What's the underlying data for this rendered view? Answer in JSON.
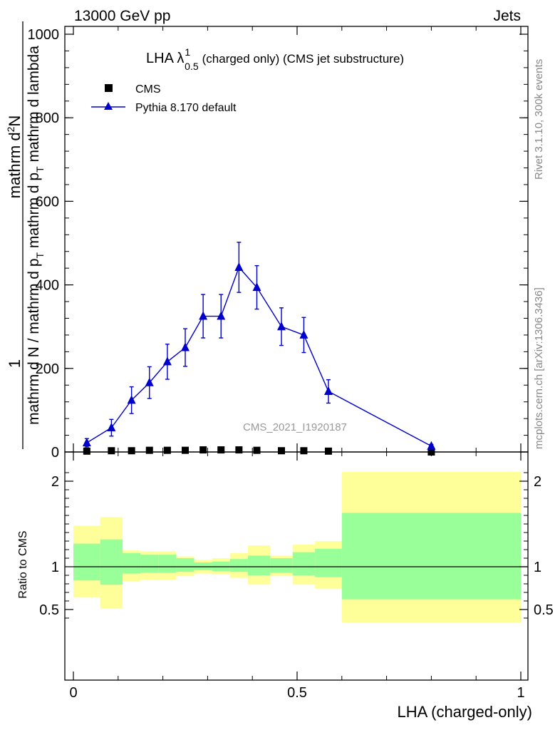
{
  "header": {
    "left": "13000 GeV pp",
    "right": "Jets"
  },
  "side_text": {
    "rivet": "Rivet 3.1.10,  300k events",
    "mcplots": "mcplots.cern.ch [arXiv:1306.3436]"
  },
  "watermark": "CMS_2021_I1920187",
  "title": {
    "prefix": "LHA λ",
    "superscript": "1",
    "subscript": "0.5",
    "suffix": "(charged only) (CMS jet substructure)"
  },
  "ylabel_main": {
    "numerator_1": "1",
    "numerator_2": "mathrm d",
    "numerator_3": "2",
    "numerator_4": "N",
    "denominator": "mathrm d N / mathrm d p",
    "denominator_sub": "T",
    "denominator_2": " mathrm d p",
    "denominator_sub_2": "T",
    "denominator_3": " mathrm d lambda"
  },
  "ylabel_ratio": "Ratio to CMS",
  "xlabel": "LHA (charged-only)",
  "legend": [
    {
      "label": "CMS",
      "marker": "square",
      "color": "#000000"
    },
    {
      "label": "Pythia 8.170 default",
      "marker": "triangle",
      "color": "#0000cc"
    }
  ],
  "colors": {
    "mc": "#0000cc",
    "data": "#000000",
    "band_outer": "#ffff99",
    "band_inner": "#99ff99"
  },
  "chart_data": [
    {
      "type": "line",
      "panel": "main",
      "ylim": [
        0,
        1000
      ],
      "xlim": [
        -0.02,
        1.0
      ],
      "yticks": [
        0,
        200,
        400,
        600,
        800,
        1000
      ],
      "ytick_labels": [
        "0",
        "200",
        "400",
        "600",
        "800",
        "1000"
      ],
      "series": [
        {
          "name": "CMS",
          "x": [
            0.03,
            0.085,
            0.13,
            0.17,
            0.21,
            0.25,
            0.29,
            0.33,
            0.37,
            0.41,
            0.465,
            0.515,
            0.57,
            0.8
          ],
          "y": [
            2,
            3,
            3,
            4,
            4,
            4,
            5,
            5,
            5,
            4,
            3,
            3,
            2,
            0
          ]
        },
        {
          "name": "Pythia 8.170 default",
          "x": [
            0.03,
            0.085,
            0.13,
            0.17,
            0.21,
            0.25,
            0.29,
            0.33,
            0.37,
            0.41,
            0.465,
            0.515,
            0.57,
            0.8
          ],
          "y": [
            22,
            58,
            124,
            166,
            216,
            250,
            325,
            325,
            442,
            394,
            300,
            280,
            145,
            14
          ],
          "yerr": [
            10,
            20,
            32,
            38,
            42,
            45,
            52,
            52,
            60,
            52,
            45,
            42,
            28,
            4
          ]
        }
      ]
    },
    {
      "type": "area",
      "panel": "ratio",
      "ylim": [
        0.35,
        2.3
      ],
      "xlim": [
        -0.02,
        1.0
      ],
      "yticks": [
        0.5,
        1,
        2
      ],
      "ytick_labels": [
        "0.5",
        "1",
        "2"
      ],
      "xticks": [
        0,
        0.5,
        1
      ],
      "xtick_labels": [
        "0",
        "0.5",
        "1"
      ],
      "reference_line": 1,
      "bins": [
        {
          "x0": 0.0,
          "x1": 0.06,
          "outer": [
            0.64,
            1.48
          ],
          "inner": [
            0.84,
            1.27
          ]
        },
        {
          "x0": 0.06,
          "x1": 0.11,
          "outer": [
            0.51,
            1.58
          ],
          "inner": [
            0.79,
            1.32
          ]
        },
        {
          "x0": 0.11,
          "x1": 0.15,
          "outer": [
            0.83,
            1.19
          ],
          "inner": [
            0.92,
            1.16
          ]
        },
        {
          "x0": 0.15,
          "x1": 0.19,
          "outer": [
            0.85,
            1.18
          ],
          "inner": [
            0.93,
            1.14
          ]
        },
        {
          "x0": 0.19,
          "x1": 0.23,
          "outer": [
            0.85,
            1.18
          ],
          "inner": [
            0.93,
            1.14
          ]
        },
        {
          "x0": 0.23,
          "x1": 0.27,
          "outer": [
            0.89,
            1.12
          ],
          "inner": [
            0.94,
            1.1
          ]
        },
        {
          "x0": 0.27,
          "x1": 0.31,
          "outer": [
            0.92,
            1.08
          ],
          "inner": [
            0.96,
            1.05
          ]
        },
        {
          "x0": 0.31,
          "x1": 0.35,
          "outer": [
            0.91,
            1.1
          ],
          "inner": [
            0.95,
            1.06
          ]
        },
        {
          "x0": 0.35,
          "x1": 0.39,
          "outer": [
            0.87,
            1.16
          ],
          "inner": [
            0.94,
            1.09
          ]
        },
        {
          "x0": 0.39,
          "x1": 0.44,
          "outer": [
            0.79,
            1.25
          ],
          "inner": [
            0.9,
            1.13
          ]
        },
        {
          "x0": 0.44,
          "x1": 0.49,
          "outer": [
            0.89,
            1.13
          ],
          "inner": [
            0.93,
            1.1
          ]
        },
        {
          "x0": 0.49,
          "x1": 0.54,
          "outer": [
            0.79,
            1.26
          ],
          "inner": [
            0.9,
            1.17
          ]
        },
        {
          "x0": 0.54,
          "x1": 0.6,
          "outer": [
            0.74,
            1.3
          ],
          "inner": [
            0.88,
            1.21
          ]
        },
        {
          "x0": 0.6,
          "x1": 1.0,
          "outer": [
            0.35,
            2.11
          ],
          "inner": [
            0.62,
            1.63
          ]
        }
      ]
    }
  ]
}
